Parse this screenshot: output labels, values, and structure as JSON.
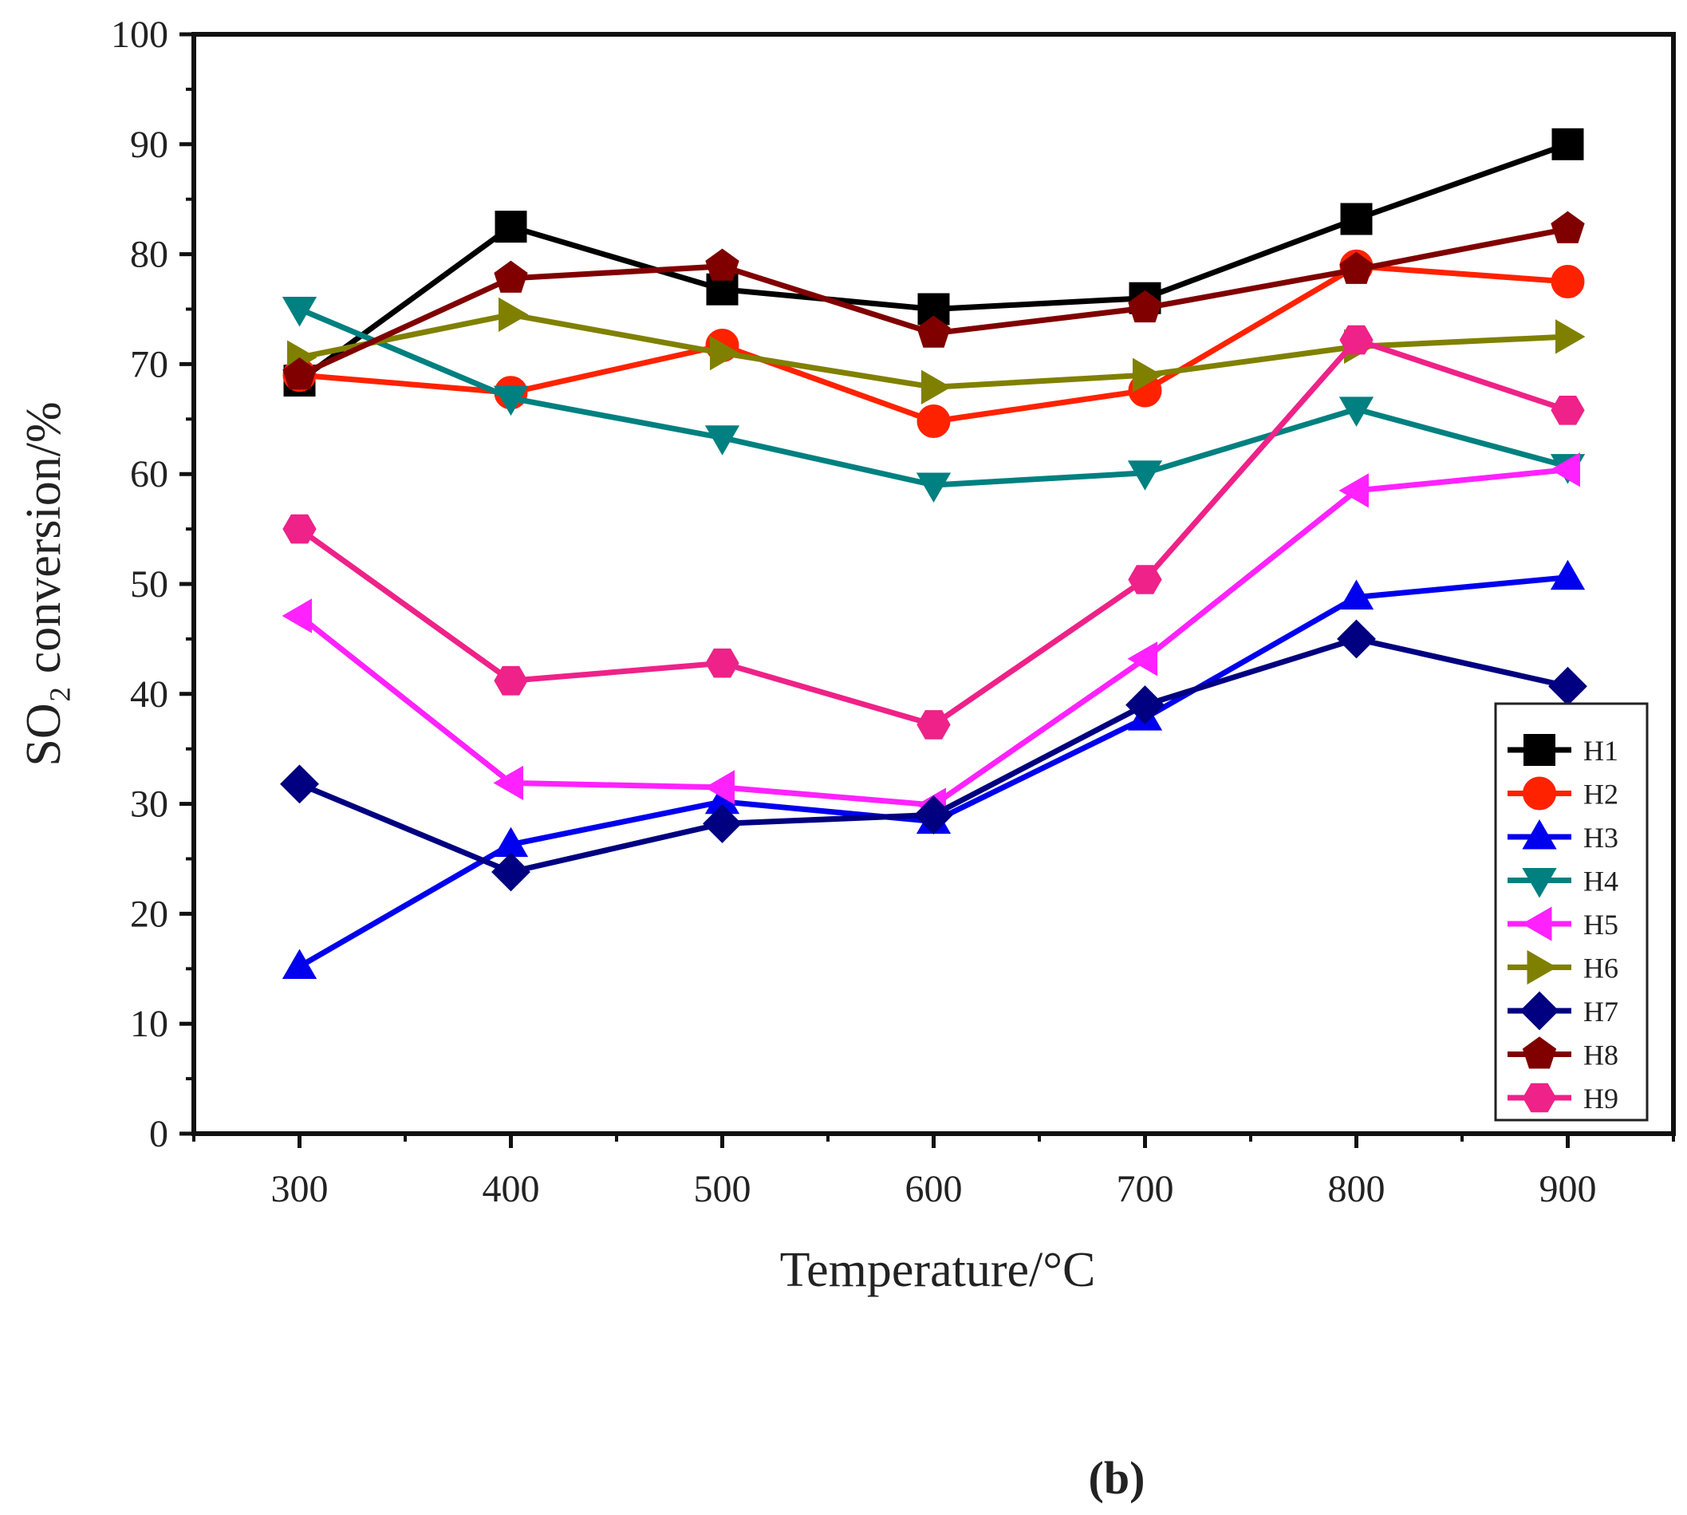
{
  "chart_data": {
    "type": "line",
    "xlabel": "Temperature/°C",
    "ylabel": "SO₂ conversion/%",
    "panel_label": "(b)",
    "x": [
      300,
      400,
      500,
      600,
      700,
      800,
      900
    ],
    "xlim": [
      250,
      950
    ],
    "ylim": [
      0,
      100
    ],
    "x_ticks": [
      "300",
      "400",
      "500",
      "600",
      "700",
      "800",
      "900"
    ],
    "y_ticks": [
      "0",
      "10",
      "20",
      "30",
      "40",
      "50",
      "60",
      "70",
      "80",
      "90",
      "100"
    ],
    "legend_position": "bottom-right",
    "series": [
      {
        "name": "H1",
        "color": "#000000",
        "marker": "square",
        "values": [
          68.5,
          82.5,
          76.8,
          75.0,
          76.0,
          83.2,
          90.0
        ]
      },
      {
        "name": "H2",
        "color": "#ff2200",
        "marker": "circle",
        "values": [
          69.0,
          67.4,
          71.7,
          64.8,
          67.6,
          78.9,
          77.5
        ]
      },
      {
        "name": "H3",
        "color": "#0000ee",
        "marker": "triangle-up",
        "values": [
          15.2,
          26.3,
          30.2,
          28.4,
          37.8,
          48.8,
          50.6
        ]
      },
      {
        "name": "H4",
        "color": "#008080",
        "marker": "triangle-down",
        "values": [
          75.0,
          66.9,
          63.3,
          59.0,
          60.1,
          65.9,
          60.7
        ]
      },
      {
        "name": "H5",
        "color": "#ff22ff",
        "marker": "triangle-left",
        "values": [
          47.1,
          31.9,
          31.5,
          29.9,
          43.2,
          58.5,
          60.4
        ]
      },
      {
        "name": "H6",
        "color": "#808000",
        "marker": "triangle-right",
        "values": [
          70.6,
          74.5,
          71.0,
          67.9,
          69.0,
          71.6,
          72.5
        ]
      },
      {
        "name": "H7",
        "color": "#000080",
        "marker": "diamond",
        "values": [
          31.8,
          23.8,
          28.2,
          29.0,
          39.0,
          45.0,
          40.7
        ]
      },
      {
        "name": "H8",
        "color": "#800000",
        "marker": "pentagon",
        "values": [
          69.0,
          77.8,
          78.9,
          72.8,
          75.1,
          78.6,
          82.3
        ]
      },
      {
        "name": "H9",
        "color": "#ee2288",
        "marker": "hexagon",
        "values": [
          55.0,
          41.2,
          42.8,
          37.2,
          50.4,
          72.2,
          65.8
        ]
      }
    ]
  }
}
